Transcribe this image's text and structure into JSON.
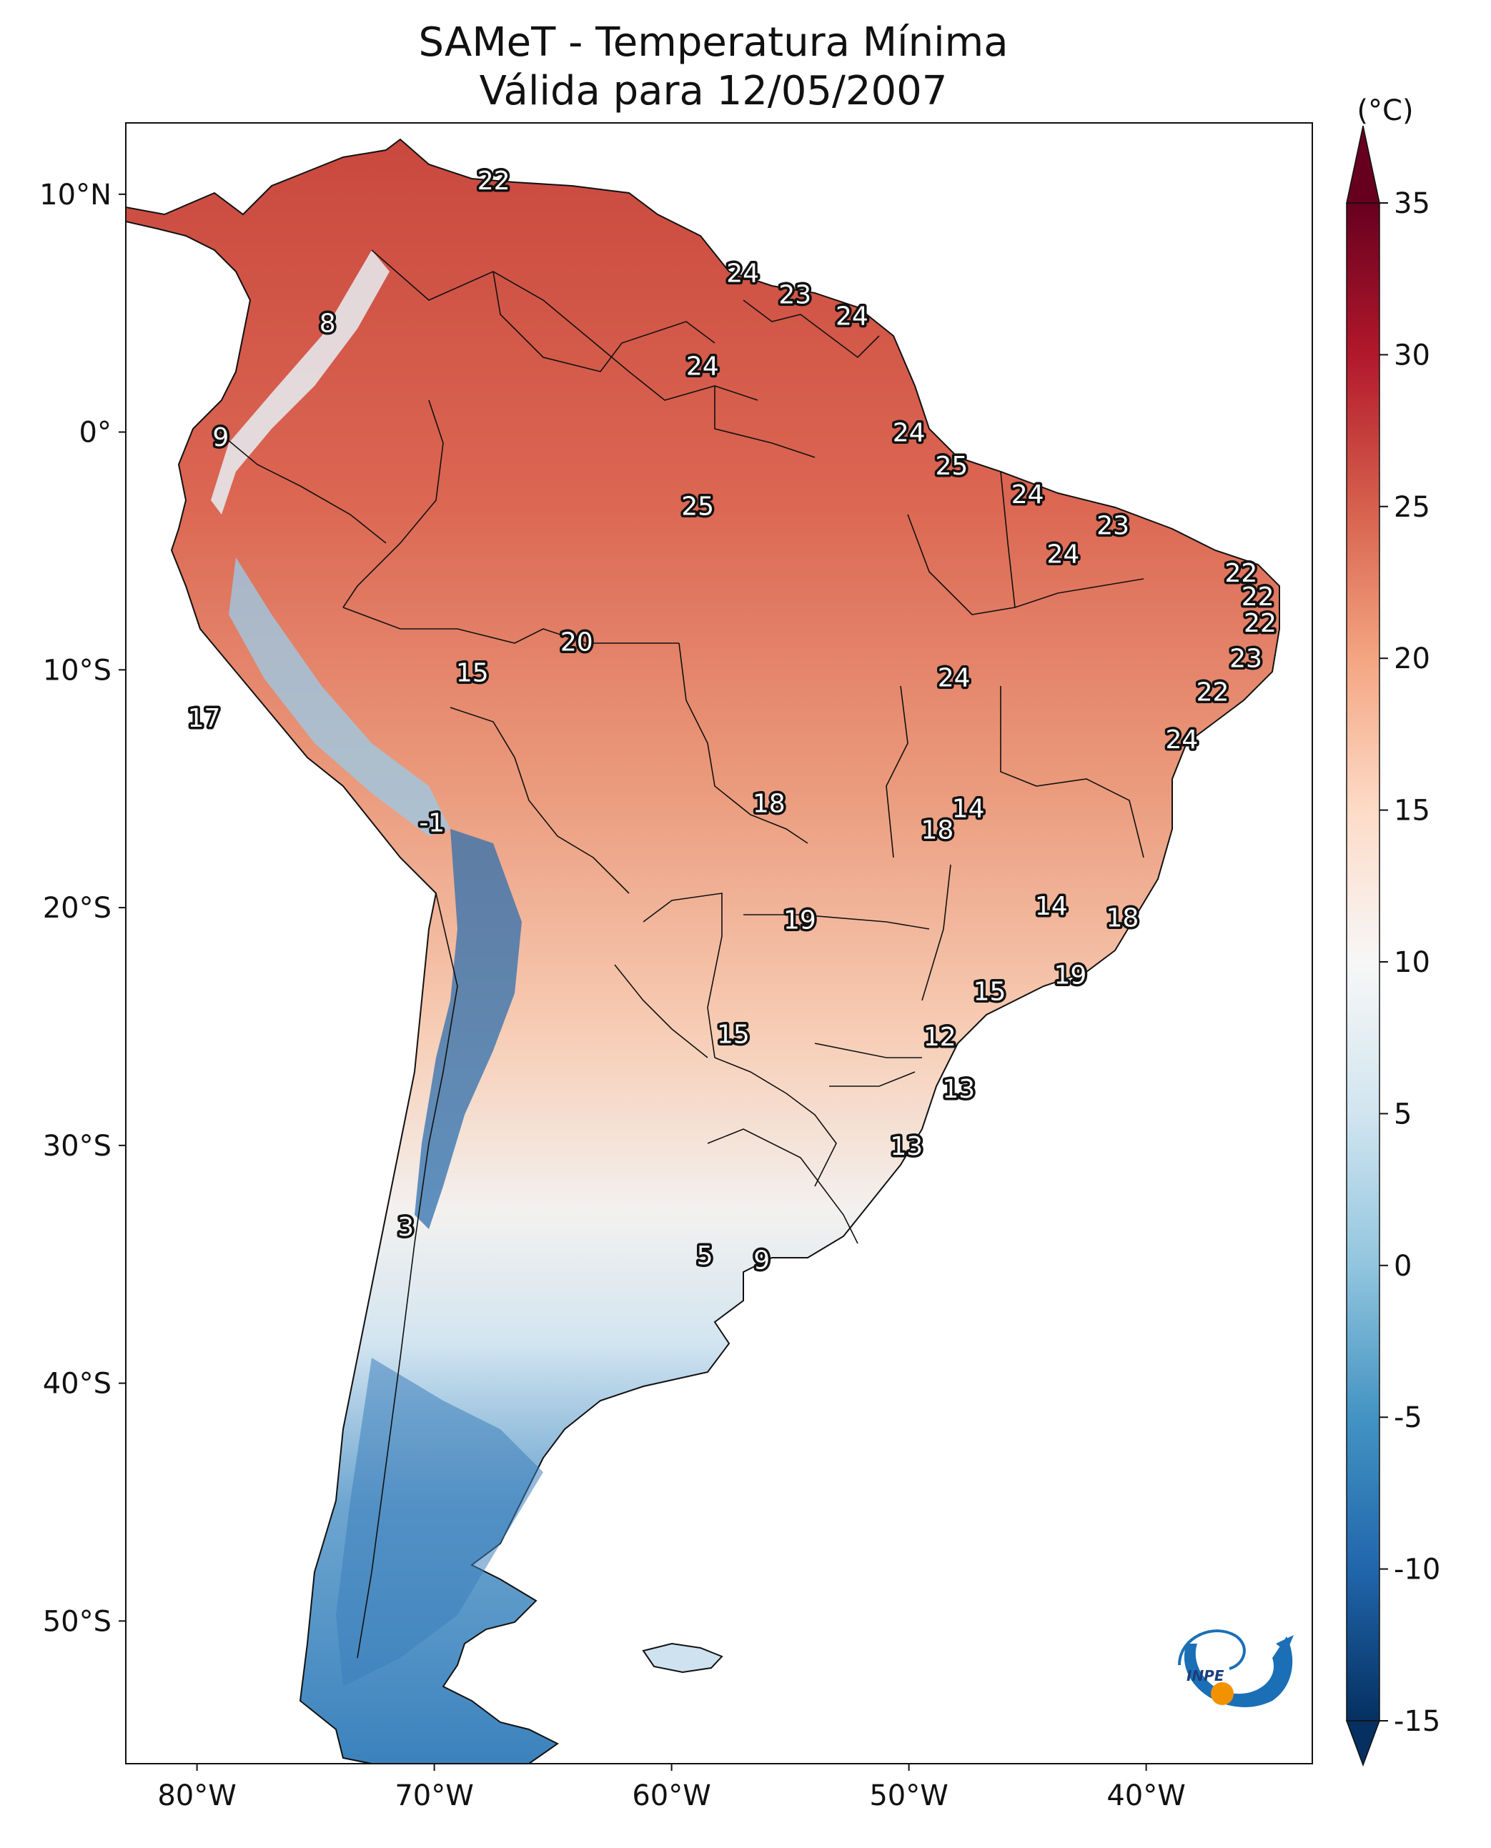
{
  "title": {
    "line1": "SAMeT - Temperatura Mínima",
    "line2": "Válida para 12/05/2007"
  },
  "map": {
    "lon_range": [
      -83,
      -33
    ],
    "lat_range": [
      -56,
      13
    ],
    "lon_ticks": [
      {
        "value": -80,
        "label": "80°W"
      },
      {
        "value": -70,
        "label": "70°W"
      },
      {
        "value": -60,
        "label": "60°W"
      },
      {
        "value": -50,
        "label": "50°W"
      },
      {
        "value": -40,
        "label": "40°W"
      }
    ],
    "lat_ticks": [
      {
        "value": 10,
        "label": "10°N"
      },
      {
        "value": 0,
        "label": "0°"
      },
      {
        "value": -10,
        "label": "10°S"
      },
      {
        "value": -20,
        "label": "20°S"
      },
      {
        "value": -30,
        "label": "30°S"
      },
      {
        "value": -40,
        "label": "40°S"
      },
      {
        "value": -50,
        "label": "50°S"
      }
    ]
  },
  "colorbar": {
    "unit": "(°C)",
    "min": -15,
    "max": 35,
    "ticks": [
      "35",
      "30",
      "25",
      "20",
      "15",
      "10",
      "5",
      "0",
      "-5",
      "-10",
      "-15"
    ],
    "colors": [
      "#053061",
      "#2166ac",
      "#4393c3",
      "#92c5de",
      "#d1e5f0",
      "#f7f7f7",
      "#fddbc7",
      "#f4a582",
      "#d6604d",
      "#b2182b",
      "#67001f"
    ],
    "extend": "both"
  },
  "station_values": [
    {
      "lon": -67.5,
      "lat": 10.6,
      "label": "22"
    },
    {
      "lon": -57.0,
      "lat": 6.7,
      "label": "24"
    },
    {
      "lon": -54.8,
      "lat": 5.8,
      "label": "23"
    },
    {
      "lon": -52.4,
      "lat": 4.9,
      "label": "24"
    },
    {
      "lon": -74.5,
      "lat": 4.6,
      "label": "8"
    },
    {
      "lon": -58.7,
      "lat": 2.8,
      "label": "24"
    },
    {
      "lon": -79.0,
      "lat": -0.2,
      "label": "9"
    },
    {
      "lon": -50.0,
      "lat": 0.0,
      "label": "24"
    },
    {
      "lon": -48.2,
      "lat": -1.4,
      "label": "25"
    },
    {
      "lon": -58.9,
      "lat": -3.1,
      "label": "25"
    },
    {
      "lon": -45.0,
      "lat": -2.6,
      "label": "24"
    },
    {
      "lon": -41.4,
      "lat": -3.9,
      "label": "23"
    },
    {
      "lon": -43.5,
      "lat": -5.1,
      "label": "24"
    },
    {
      "lon": -36.0,
      "lat": -5.9,
      "label": "22"
    },
    {
      "lon": -35.3,
      "lat": -6.9,
      "label": "22"
    },
    {
      "lon": -35.2,
      "lat": -8.0,
      "label": "22"
    },
    {
      "lon": -64.0,
      "lat": -8.8,
      "label": "20"
    },
    {
      "lon": -35.8,
      "lat": -9.5,
      "label": "23"
    },
    {
      "lon": -68.4,
      "lat": -10.1,
      "label": "15"
    },
    {
      "lon": -48.1,
      "lat": -10.3,
      "label": "24"
    },
    {
      "lon": -37.2,
      "lat": -10.9,
      "label": "22"
    },
    {
      "lon": -79.7,
      "lat": -12.0,
      "label": "17"
    },
    {
      "lon": -38.5,
      "lat": -12.9,
      "label": "24"
    },
    {
      "lon": -55.9,
      "lat": -15.6,
      "label": "18"
    },
    {
      "lon": -47.5,
      "lat": -15.8,
      "label": "14"
    },
    {
      "lon": -48.8,
      "lat": -16.7,
      "label": "18"
    },
    {
      "lon": -70.1,
      "lat": -16.4,
      "label": "-1"
    },
    {
      "lon": -44.0,
      "lat": -19.9,
      "label": "14"
    },
    {
      "lon": -54.6,
      "lat": -20.5,
      "label": "19"
    },
    {
      "lon": -41.0,
      "lat": -20.4,
      "label": "18"
    },
    {
      "lon": -43.2,
      "lat": -22.8,
      "label": "19"
    },
    {
      "lon": -46.6,
      "lat": -23.5,
      "label": "15"
    },
    {
      "lon": -48.7,
      "lat": -25.4,
      "label": "12"
    },
    {
      "lon": -57.4,
      "lat": -25.3,
      "label": "15"
    },
    {
      "lon": -47.9,
      "lat": -27.6,
      "label": "13"
    },
    {
      "lon": -50.1,
      "lat": -30.0,
      "label": "13"
    },
    {
      "lon": -71.2,
      "lat": -33.4,
      "label": "3"
    },
    {
      "lon": -58.6,
      "lat": -34.6,
      "label": "5"
    },
    {
      "lon": -56.2,
      "lat": -34.8,
      "label": "9"
    }
  ],
  "logo": {
    "text": "INPE"
  }
}
